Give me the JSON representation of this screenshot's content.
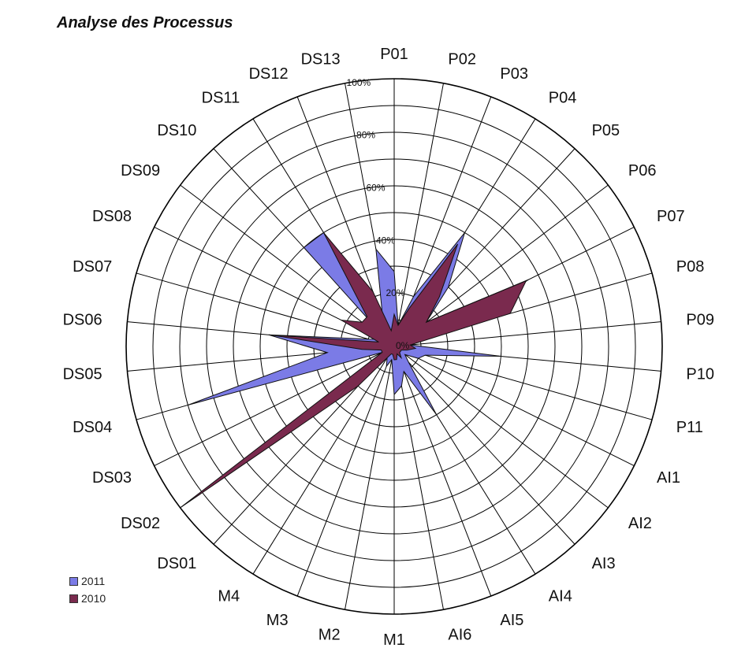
{
  "chart_data": {
    "type": "radar",
    "title": "Analyse des Processus",
    "categories": [
      "P01",
      "P02",
      "P03",
      "P04",
      "P05",
      "P06",
      "P07",
      "P08",
      "P09",
      "P10",
      "P11",
      "AI1",
      "AI2",
      "AI3",
      "AI4",
      "AI5",
      "AI6",
      "M1",
      "M2",
      "M3",
      "M4",
      "DS01",
      "DS02",
      "DS03",
      "DS04",
      "DS05",
      "DS06",
      "DS07",
      "DS08",
      "DS09",
      "DS10",
      "DS11",
      "DS12",
      "DS13"
    ],
    "tick_labels": [
      "0%",
      "20%",
      "40%",
      "60%",
      "80%",
      "100%"
    ],
    "ylim": [
      0,
      100
    ],
    "gridline_step": 10,
    "series": [
      {
        "name": "2011",
        "color": "#7b7be6",
        "values": [
          28,
          8,
          20,
          50,
          30,
          15,
          56,
          25,
          6,
          40,
          12,
          10,
          5,
          8,
          30,
          10,
          15,
          18,
          5,
          8,
          5,
          6,
          10,
          5,
          80,
          25,
          47,
          10,
          6,
          2,
          50,
          50,
          12,
          37
        ]
      },
      {
        "name": "2010",
        "color": "#7a2a4e",
        "values": [
          12,
          8,
          15,
          45,
          25,
          15,
          55,
          45,
          6,
          8,
          5,
          3,
          3,
          3,
          5,
          3,
          5,
          5,
          3,
          3,
          5,
          20,
          100,
          5,
          5,
          12,
          46,
          6,
          22,
          15,
          15,
          50,
          22,
          6
        ]
      }
    ],
    "legend": {
      "position": "bottom-left"
    }
  }
}
